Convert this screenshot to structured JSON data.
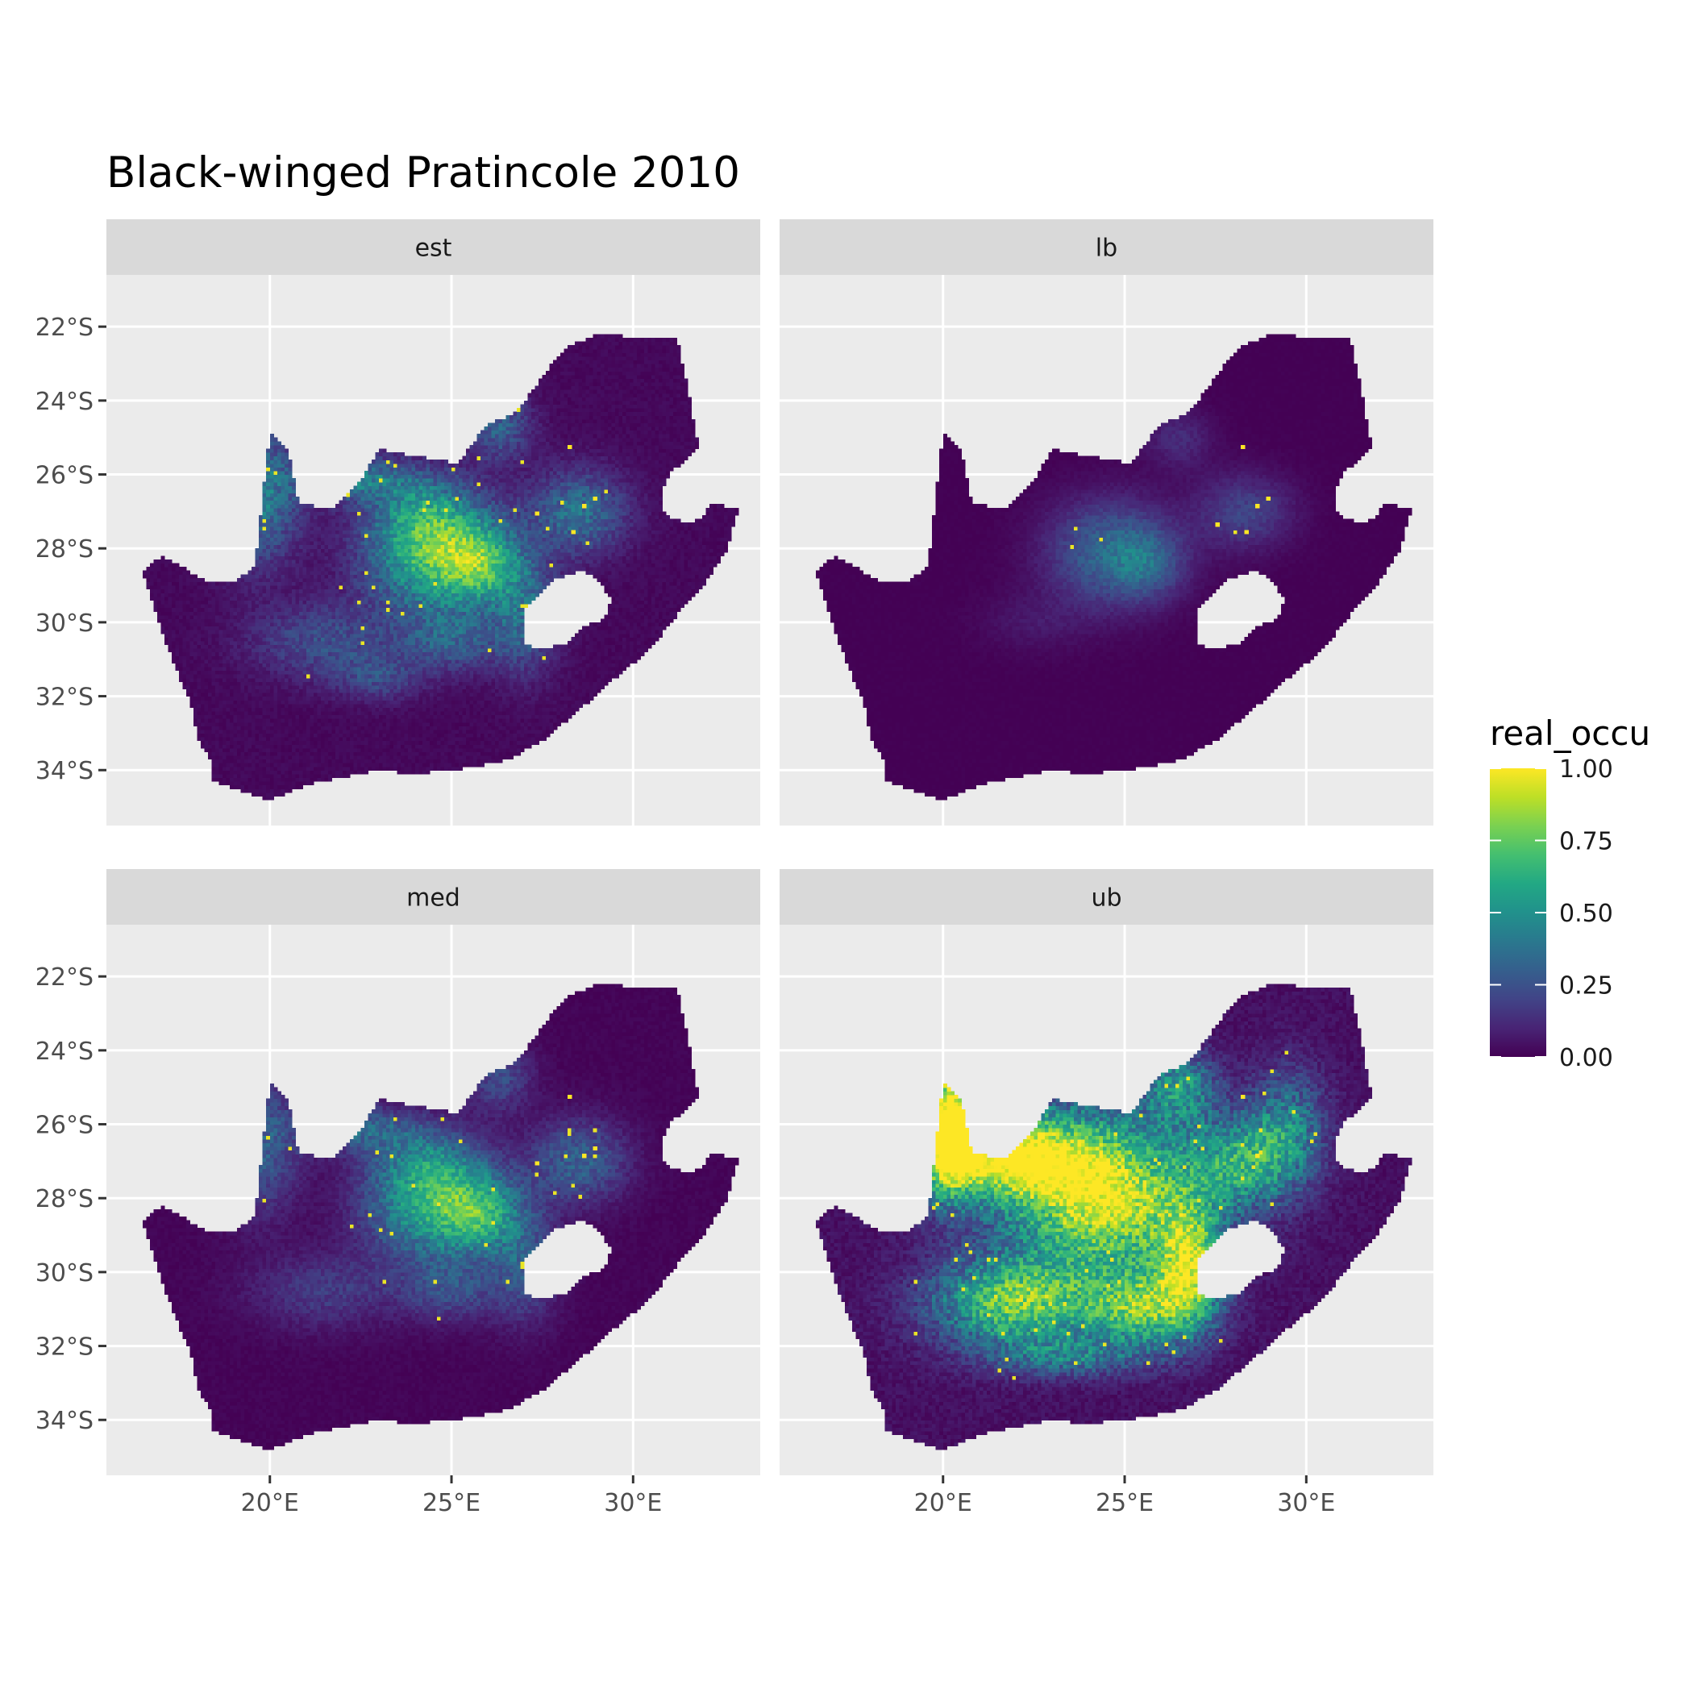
{
  "title": "Black-winged Pratincole 2010",
  "x_ticks": [
    {
      "lon": 20,
      "label": "20°E"
    },
    {
      "lon": 25,
      "label": "25°E"
    },
    {
      "lon": 30,
      "label": "30°E"
    }
  ],
  "y_ticks": [
    {
      "lat": -22,
      "label": "22°S"
    },
    {
      "lat": -24,
      "label": "24°S"
    },
    {
      "lat": -26,
      "label": "26°S"
    },
    {
      "lat": -28,
      "label": "28°S"
    },
    {
      "lat": -30,
      "label": "30°S"
    },
    {
      "lat": -32,
      "label": "32°S"
    },
    {
      "lat": -34,
      "label": "34°S"
    }
  ],
  "x_range": [
    15.5,
    33.5
  ],
  "y_range": [
    -35.5,
    -20.6
  ],
  "legend": {
    "title": "real_occu",
    "ticks": [
      {
        "value": 1.0,
        "label": "1.00"
      },
      {
        "value": 0.75,
        "label": "0.75"
      },
      {
        "value": 0.5,
        "label": "0.50"
      },
      {
        "value": 0.25,
        "label": "0.25"
      },
      {
        "value": 0.0,
        "label": "0.00"
      }
    ],
    "palette": "viridis"
  },
  "colors": {
    "panel_bg": "#ebebeb",
    "strip_bg": "#d9d9d9",
    "grid": "#ffffff",
    "viridis": [
      "#440154",
      "#482475",
      "#414487",
      "#355f8d",
      "#2a788e",
      "#21918c",
      "#22a884",
      "#44bf70",
      "#7ad151",
      "#bddf26",
      "#fde725"
    ]
  },
  "map": {
    "outline": [
      [
        16.5,
        -28.6
      ],
      [
        17.05,
        -28.2
      ],
      [
        17.4,
        -28.4
      ],
      [
        18.3,
        -28.9
      ],
      [
        19.0,
        -28.9
      ],
      [
        19.6,
        -28.5
      ],
      [
        20.0,
        -24.8
      ],
      [
        20.5,
        -25.4
      ],
      [
        20.8,
        -26.8
      ],
      [
        21.7,
        -26.9
      ],
      [
        22.6,
        -26.0
      ],
      [
        23.0,
        -25.3
      ],
      [
        24.0,
        -25.5
      ],
      [
        25.2,
        -25.7
      ],
      [
        25.9,
        -24.7
      ],
      [
        26.8,
        -24.3
      ],
      [
        27.4,
        -23.5
      ],
      [
        28.1,
        -22.6
      ],
      [
        29.0,
        -22.2
      ],
      [
        30.4,
        -22.3
      ],
      [
        31.2,
        -22.3
      ],
      [
        31.5,
        -23.6
      ],
      [
        31.8,
        -25.3
      ],
      [
        31.3,
        -25.8
      ],
      [
        30.8,
        -26.4
      ],
      [
        31.4,
        -27.3
      ],
      [
        31.9,
        -27.2
      ],
      [
        32.1,
        -26.8
      ],
      [
        32.9,
        -26.9
      ],
      [
        32.6,
        -28.0
      ],
      [
        32.0,
        -28.9
      ],
      [
        31.2,
        -29.8
      ],
      [
        30.4,
        -30.8
      ],
      [
        29.5,
        -31.5
      ],
      [
        28.7,
        -32.2
      ],
      [
        27.5,
        -33.2
      ],
      [
        26.6,
        -33.7
      ],
      [
        25.7,
        -33.9
      ],
      [
        24.9,
        -34.0
      ],
      [
        24.0,
        -34.1
      ],
      [
        23.0,
        -34.0
      ],
      [
        22.0,
        -34.2
      ],
      [
        21.0,
        -34.4
      ],
      [
        20.0,
        -34.8
      ],
      [
        19.3,
        -34.6
      ],
      [
        18.8,
        -34.4
      ],
      [
        18.4,
        -34.3
      ],
      [
        18.4,
        -33.8
      ],
      [
        18.0,
        -33.1
      ],
      [
        17.9,
        -32.4
      ],
      [
        17.4,
        -31.2
      ],
      [
        16.9,
        -29.9
      ]
    ],
    "lesotho": [
      [
        27.0,
        -30.6
      ],
      [
        27.4,
        -30.7
      ],
      [
        28.1,
        -30.6
      ],
      [
        28.7,
        -30.1
      ],
      [
        29.2,
        -29.9
      ],
      [
        29.4,
        -29.4
      ],
      [
        29.0,
        -28.8
      ],
      [
        28.6,
        -28.6
      ],
      [
        28.2,
        -28.7
      ],
      [
        27.7,
        -28.9
      ],
      [
        27.4,
        -29.3
      ],
      [
        27.0,
        -29.7
      ],
      [
        27.0,
        -30.2
      ]
    ],
    "eswatini": [
      [
        30.8,
        -26.4
      ],
      [
        31.1,
        -25.75
      ],
      [
        31.5,
        -25.9
      ],
      [
        32.1,
        -26.3
      ],
      [
        32.0,
        -27.1
      ],
      [
        31.5,
        -27.3
      ],
      [
        31.1,
        -27.2
      ],
      [
        30.8,
        -26.9
      ]
    ]
  },
  "panels": [
    {
      "id": "est",
      "label": "est",
      "hotspots": [
        {
          "lon": 24.5,
          "lat": -28.2,
          "rx": 1.8,
          "ry": 1.5,
          "v": 0.62
        },
        {
          "lon": 25.8,
          "lat": -28.4,
          "rx": 1.1,
          "ry": 1.0,
          "v": 0.45
        },
        {
          "lon": 24.3,
          "lat": -27.0,
          "rx": 1.4,
          "ry": 1.0,
          "v": 0.3
        },
        {
          "lon": 21.5,
          "lat": -30.5,
          "rx": 2.0,
          "ry": 1.0,
          "v": 0.22
        },
        {
          "lon": 19.7,
          "lat": -26.5,
          "rx": 1.1,
          "ry": 1.8,
          "v": 0.4
        },
        {
          "lon": 22.4,
          "lat": -26.1,
          "rx": 1.5,
          "ry": 0.6,
          "v": 0.35
        },
        {
          "lon": 28.5,
          "lat": -27.0,
          "rx": 1.3,
          "ry": 1.1,
          "v": 0.35
        },
        {
          "lon": 26.3,
          "lat": -24.7,
          "rx": 0.9,
          "ry": 0.9,
          "v": 0.28
        },
        {
          "lon": 27.0,
          "lat": -29.8,
          "rx": 0.9,
          "ry": 1.5,
          "v": 0.3
        },
        {
          "lon": 25.0,
          "lat": -30.5,
          "rx": 1.3,
          "ry": 0.8,
          "v": 0.25
        },
        {
          "lon": 23.0,
          "lat": -31.5,
          "rx": 1.2,
          "ry": 0.6,
          "v": 0.18
        }
      ],
      "noise": 0.13,
      "min": 0.02,
      "dot_prob": 0.008,
      "dots": [
        [
          28.2,
          -25.2
        ],
        [
          28.6,
          -26.8
        ],
        [
          28.9,
          -26.6
        ],
        [
          27.3,
          -27.0
        ],
        [
          28.3,
          -27.5
        ]
      ]
    },
    {
      "id": "lb",
      "label": "lb",
      "hotspots": [
        {
          "lon": 24.6,
          "lat": -28.1,
          "rx": 1.7,
          "ry": 1.4,
          "v": 0.32
        },
        {
          "lon": 25.6,
          "lat": -28.4,
          "rx": 1.0,
          "ry": 0.9,
          "v": 0.2
        },
        {
          "lon": 28.3,
          "lat": -27.0,
          "rx": 1.3,
          "ry": 1.0,
          "v": 0.2
        },
        {
          "lon": 22.5,
          "lat": -30.0,
          "rx": 1.5,
          "ry": 0.8,
          "v": 0.06
        },
        {
          "lon": 26.5,
          "lat": -25.0,
          "rx": 0.9,
          "ry": 0.8,
          "v": 0.12
        }
      ],
      "noise": 0.08,
      "min": 0.0,
      "dot_prob": 0.004,
      "dots": [
        [
          28.2,
          -25.2
        ],
        [
          28.6,
          -26.8
        ],
        [
          28.9,
          -26.6
        ],
        [
          27.5,
          -27.3
        ],
        [
          28.3,
          -27.5
        ]
      ]
    },
    {
      "id": "med",
      "label": "med",
      "hotspots": [
        {
          "lon": 24.5,
          "lat": -28.2,
          "rx": 1.8,
          "ry": 1.5,
          "v": 0.55
        },
        {
          "lon": 25.8,
          "lat": -28.4,
          "rx": 1.1,
          "ry": 1.0,
          "v": 0.4
        },
        {
          "lon": 24.3,
          "lat": -27.0,
          "rx": 1.4,
          "ry": 1.0,
          "v": 0.25
        },
        {
          "lon": 21.5,
          "lat": -30.5,
          "rx": 2.0,
          "ry": 1.0,
          "v": 0.16
        },
        {
          "lon": 19.7,
          "lat": -26.5,
          "rx": 1.1,
          "ry": 1.8,
          "v": 0.3
        },
        {
          "lon": 22.4,
          "lat": -26.1,
          "rx": 1.5,
          "ry": 0.6,
          "v": 0.3
        },
        {
          "lon": 28.5,
          "lat": -27.0,
          "rx": 1.3,
          "ry": 1.1,
          "v": 0.3
        },
        {
          "lon": 26.3,
          "lat": -24.7,
          "rx": 0.9,
          "ry": 0.9,
          "v": 0.22
        },
        {
          "lon": 27.0,
          "lat": -29.8,
          "rx": 0.9,
          "ry": 1.5,
          "v": 0.25
        },
        {
          "lon": 25.0,
          "lat": -30.5,
          "rx": 1.3,
          "ry": 0.8,
          "v": 0.2
        }
      ],
      "noise": 0.12,
      "min": 0.01,
      "dot_prob": 0.007,
      "dots": [
        [
          28.2,
          -25.2
        ],
        [
          28.6,
          -26.8
        ],
        [
          28.9,
          -26.6
        ],
        [
          27.3,
          -27.0
        ]
      ]
    },
    {
      "id": "ub",
      "label": "ub",
      "hotspots": [
        {
          "lon": 24.5,
          "lat": -28.0,
          "rx": 2.6,
          "ry": 2.0,
          "v": 0.9
        },
        {
          "lon": 21.5,
          "lat": -26.8,
          "rx": 2.5,
          "ry": 1.2,
          "v": 0.88
        },
        {
          "lon": 20.2,
          "lat": -25.8,
          "rx": 0.7,
          "ry": 1.8,
          "v": 0.9
        },
        {
          "lon": 22.0,
          "lat": -30.8,
          "rx": 2.2,
          "ry": 1.2,
          "v": 0.72
        },
        {
          "lon": 25.5,
          "lat": -31.0,
          "rx": 1.5,
          "ry": 1.0,
          "v": 0.62
        },
        {
          "lon": 26.8,
          "lat": -29.8,
          "rx": 0.9,
          "ry": 1.6,
          "v": 0.7
        },
        {
          "lon": 28.3,
          "lat": -27.0,
          "rx": 1.4,
          "ry": 1.2,
          "v": 0.5
        },
        {
          "lon": 26.5,
          "lat": -25.0,
          "rx": 1.0,
          "ry": 1.0,
          "v": 0.45
        },
        {
          "lon": 29.5,
          "lat": -26.0,
          "rx": 1.0,
          "ry": 1.5,
          "v": 0.35
        },
        {
          "lon": 23.5,
          "lat": -32.3,
          "rx": 2.0,
          "ry": 0.5,
          "v": 0.3
        }
      ],
      "noise": 0.17,
      "min": 0.04,
      "dot_prob": 0.01,
      "dots": [
        [
          28.2,
          -25.2
        ],
        [
          28.6,
          -26.8
        ]
      ]
    }
  ]
}
